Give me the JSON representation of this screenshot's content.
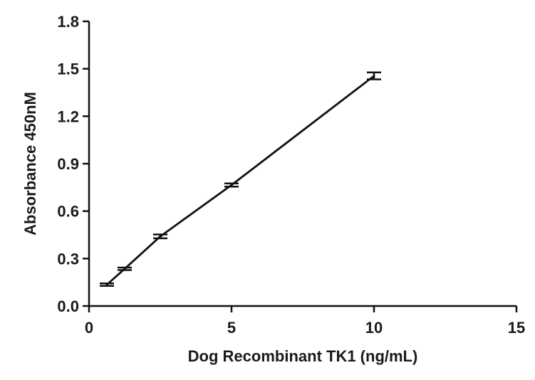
{
  "chart_data": {
    "type": "line",
    "title": "",
    "xlabel": "Dog Recombinant TK1  (ng/mL)",
    "ylabel": "Absorbance 450nM",
    "xlim": [
      0,
      15
    ],
    "ylim": [
      0,
      1.8
    ],
    "x_ticks": [
      0,
      5,
      10,
      15
    ],
    "x_tick_labels": [
      "0",
      "5",
      "10",
      "15"
    ],
    "y_ticks": [
      0,
      0.3,
      0.6,
      0.9,
      1.2,
      1.5,
      1.8
    ],
    "y_tick_labels": [
      "0.0",
      "0.3",
      "0.6",
      "0.9",
      "1.2",
      "1.5",
      "1.8"
    ],
    "grid": false,
    "series": [
      {
        "x": [
          0.625,
          1.25,
          2.5,
          5,
          10
        ],
        "y": [
          0.135,
          0.235,
          0.44,
          0.765,
          1.455
        ],
        "error": [
          0.008,
          0.008,
          0.012,
          0.01,
          0.022
        ]
      }
    ],
    "colors": {
      "line": "#111111",
      "axis": "#111111"
    }
  }
}
